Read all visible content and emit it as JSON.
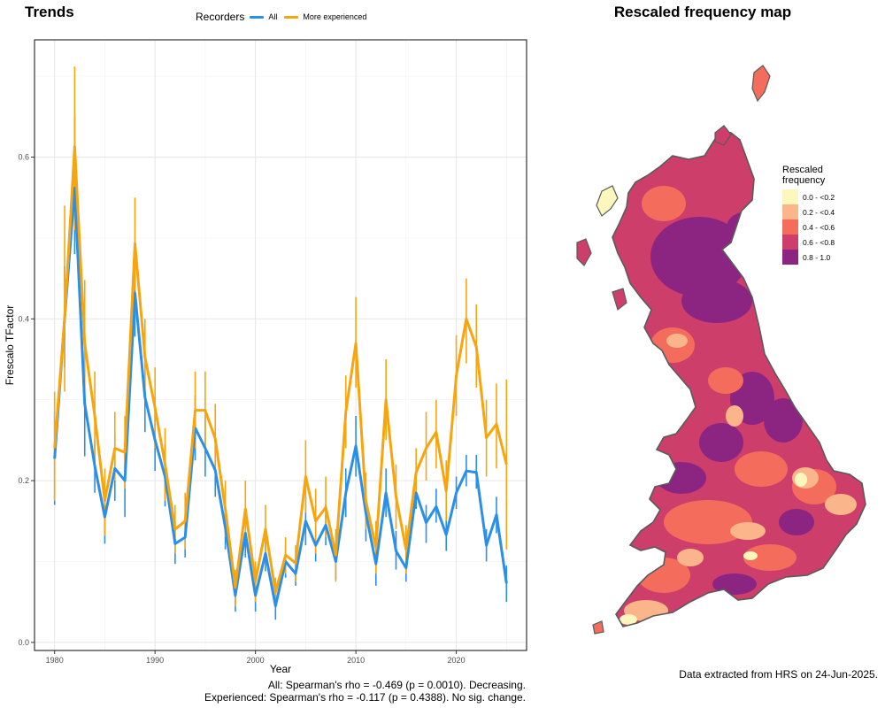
{
  "trends_title": "Trends",
  "legend": {
    "title": "Recorders",
    "items": [
      {
        "label": "All",
        "color": "#2b8fe8"
      },
      {
        "label": "More experienced",
        "color": "#f7a50f"
      }
    ]
  },
  "chart_data": {
    "type": "line",
    "title": "Trends",
    "xlabel": "Year",
    "ylabel": "Frescalo TFactor",
    "xlim": [
      1978,
      2027
    ],
    "ylim": [
      -0.01,
      0.745
    ],
    "xticks": [
      1980,
      1990,
      2000,
      2010,
      2020
    ],
    "xtick_labels": [
      "1980",
      "1990",
      "2000",
      "2010",
      "2020"
    ],
    "yticks": [
      0.0,
      0.2,
      0.4,
      0.6
    ],
    "ytick_labels": [
      "0.0",
      "0.2",
      "0.4",
      "0.6"
    ],
    "grid": true,
    "legend_position": "top",
    "x": [
      1980,
      1981,
      1982,
      1983,
      1984,
      1985,
      1986,
      1987,
      1988,
      1989,
      1990,
      1991,
      1992,
      1993,
      1994,
      1995,
      1996,
      1997,
      1998,
      1999,
      2000,
      2001,
      2002,
      2003,
      2004,
      2005,
      2006,
      2007,
      2008,
      2009,
      2010,
      2011,
      2012,
      2013,
      2014,
      2015,
      2016,
      2017,
      2018,
      2019,
      2020,
      2021,
      2022,
      2023,
      2024,
      2025
    ],
    "series": [
      {
        "name": "All",
        "color": "#2b8fe8",
        "values": [
          0.227,
          0.4,
          0.562,
          0.295,
          0.218,
          0.155,
          0.215,
          0.2,
          0.432,
          0.303,
          0.25,
          0.205,
          0.122,
          0.13,
          0.265,
          0.24,
          0.213,
          0.142,
          0.058,
          0.135,
          0.058,
          0.11,
          0.045,
          0.1,
          0.085,
          0.15,
          0.12,
          0.145,
          0.1,
          0.185,
          0.243,
          0.16,
          0.097,
          0.185,
          0.113,
          0.092,
          0.185,
          0.148,
          0.168,
          0.133,
          0.185,
          0.212,
          0.21,
          0.12,
          0.158,
          0.073
        ],
        "lower": [
          0.17,
          0.34,
          0.48,
          0.23,
          0.185,
          0.122,
          0.175,
          0.155,
          0.378,
          0.26,
          0.212,
          0.168,
          0.097,
          0.105,
          0.225,
          0.205,
          0.18,
          0.115,
          0.038,
          0.105,
          0.038,
          0.088,
          0.028,
          0.08,
          0.07,
          0.12,
          0.1,
          0.12,
          0.078,
          0.155,
          0.205,
          0.125,
          0.07,
          0.155,
          0.09,
          0.075,
          0.165,
          0.123,
          0.148,
          0.113,
          0.165,
          0.193,
          0.19,
          0.1,
          0.135,
          0.05
        ],
        "upper": [
          0.285,
          0.465,
          0.65,
          0.36,
          0.25,
          0.19,
          0.255,
          0.24,
          0.483,
          0.345,
          0.29,
          0.245,
          0.15,
          0.16,
          0.305,
          0.28,
          0.25,
          0.17,
          0.078,
          0.16,
          0.078,
          0.135,
          0.065,
          0.12,
          0.1,
          0.18,
          0.145,
          0.17,
          0.125,
          0.215,
          0.28,
          0.19,
          0.123,
          0.215,
          0.138,
          0.112,
          0.208,
          0.17,
          0.19,
          0.155,
          0.205,
          0.232,
          0.232,
          0.14,
          0.18,
          0.095
        ]
      },
      {
        "name": "More experienced",
        "color": "#f7a50f",
        "values": [
          0.24,
          0.4,
          0.613,
          0.37,
          0.28,
          0.175,
          0.24,
          0.235,
          0.493,
          0.353,
          0.29,
          0.22,
          0.14,
          0.15,
          0.287,
          0.287,
          0.252,
          0.165,
          0.068,
          0.165,
          0.075,
          0.14,
          0.062,
          0.108,
          0.098,
          0.205,
          0.15,
          0.167,
          0.108,
          0.285,
          0.37,
          0.175,
          0.117,
          0.3,
          0.18,
          0.115,
          0.21,
          0.24,
          0.26,
          0.187,
          0.33,
          0.4,
          0.365,
          0.253,
          0.27,
          0.22
        ],
        "lower": [
          0.175,
          0.31,
          0.51,
          0.29,
          0.225,
          0.132,
          0.2,
          0.19,
          0.435,
          0.3,
          0.24,
          0.175,
          0.11,
          0.115,
          0.24,
          0.24,
          0.21,
          0.13,
          0.045,
          0.13,
          0.05,
          0.11,
          0.045,
          0.085,
          0.075,
          0.16,
          0.11,
          0.13,
          0.075,
          0.24,
          0.315,
          0.14,
          0.085,
          0.25,
          0.14,
          0.085,
          0.18,
          0.2,
          0.215,
          0.15,
          0.28,
          0.345,
          0.315,
          0.205,
          0.215,
          0.115
        ],
        "upper": [
          0.31,
          0.54,
          0.712,
          0.448,
          0.335,
          0.215,
          0.285,
          0.28,
          0.55,
          0.4,
          0.34,
          0.265,
          0.17,
          0.185,
          0.335,
          0.335,
          0.295,
          0.2,
          0.09,
          0.2,
          0.1,
          0.17,
          0.08,
          0.13,
          0.12,
          0.25,
          0.19,
          0.205,
          0.14,
          0.33,
          0.427,
          0.21,
          0.15,
          0.35,
          0.22,
          0.145,
          0.24,
          0.285,
          0.3,
          0.225,
          0.38,
          0.45,
          0.418,
          0.3,
          0.32,
          0.325
        ]
      }
    ]
  },
  "stats": {
    "line1": "All: Spearman's rho = -0.469 (p = 0.0010). Decreasing.",
    "line2": "Experienced: Spearman's rho = -0.117 (p = 0.4388). No sig. change."
  },
  "map": {
    "title": "Rescaled frequency map",
    "legend_title_line1": "Rescaled",
    "legend_title_line2": "frequency",
    "categories": [
      {
        "label": "0.0 - <0.2",
        "color": "#fdf6bd"
      },
      {
        "label": "0.2 - <0.4",
        "color": "#fab58a"
      },
      {
        "label": "0.4 - <0.6",
        "color": "#f46d5c"
      },
      {
        "label": "0.6 - <0.8",
        "color": "#ce3e6b"
      },
      {
        "label": "0.8 - 1.0",
        "color": "#8c2582"
      }
    ],
    "outline_color": "#5a5a5a"
  },
  "extract_note": "Data extracted from HRS on 24-Jun-2025."
}
